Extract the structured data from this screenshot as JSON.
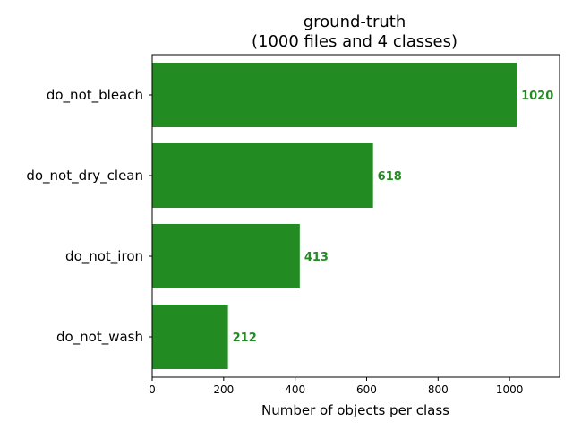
{
  "chart_data": {
    "type": "bar",
    "orientation": "horizontal",
    "title": "ground-truth",
    "subtitle": "(1000 files and 4 classes)",
    "xlabel": "Number of objects per class",
    "ylabel": "",
    "categories": [
      "do_not_wash",
      "do_not_iron",
      "do_not_dry_clean",
      "do_not_bleach"
    ],
    "values": [
      212,
      413,
      618,
      1020
    ],
    "value_labels": [
      "212",
      "413",
      "618",
      "1020"
    ],
    "xlim": [
      0,
      1140
    ],
    "xticks": [
      0,
      200,
      400,
      600,
      800,
      1000
    ],
    "xtick_labels": [
      "0",
      "200",
      "400",
      "600",
      "800",
      "1000"
    ],
    "grid": false,
    "legend": "none",
    "bar_color": "#228B22",
    "label_color": "#228B22"
  }
}
